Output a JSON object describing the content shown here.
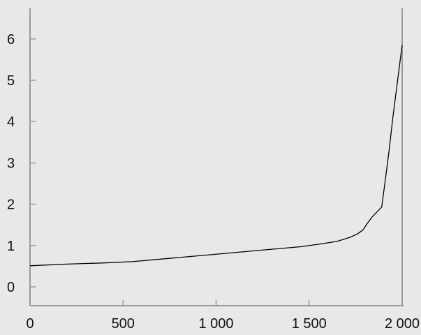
{
  "chart_data": {
    "type": "line",
    "title": "",
    "xlabel": "",
    "ylabel": "",
    "xlim": [
      0,
      2000
    ],
    "ylim": [
      0,
      7
    ],
    "grid": false,
    "x_ticks": [
      0,
      500,
      1000,
      1500,
      2000
    ],
    "x_tick_labels": [
      "0",
      "500",
      "1 000",
      "1 500",
      "2 000"
    ],
    "y_ticks": [
      0,
      1,
      2,
      3,
      4,
      5,
      6
    ],
    "y_tick_labels": [
      "0",
      "1",
      "2",
      "3",
      "4",
      "5",
      "6"
    ],
    "series": [
      {
        "color": "#000000",
        "x": [
          0,
          200,
          400,
          550,
          700,
          900,
          1100,
          1300,
          1450,
          1550,
          1650,
          1720,
          1760,
          1790,
          1810,
          1840,
          1870,
          1890,
          1910,
          1930,
          1950,
          1970,
          1990,
          2000
        ],
        "y": [
          0.51,
          0.55,
          0.58,
          0.61,
          0.67,
          0.75,
          0.83,
          0.91,
          0.97,
          1.03,
          1.1,
          1.2,
          1.28,
          1.38,
          1.52,
          1.7,
          1.84,
          1.93,
          2.6,
          3.3,
          4.1,
          4.8,
          5.5,
          5.85
        ]
      }
    ]
  }
}
